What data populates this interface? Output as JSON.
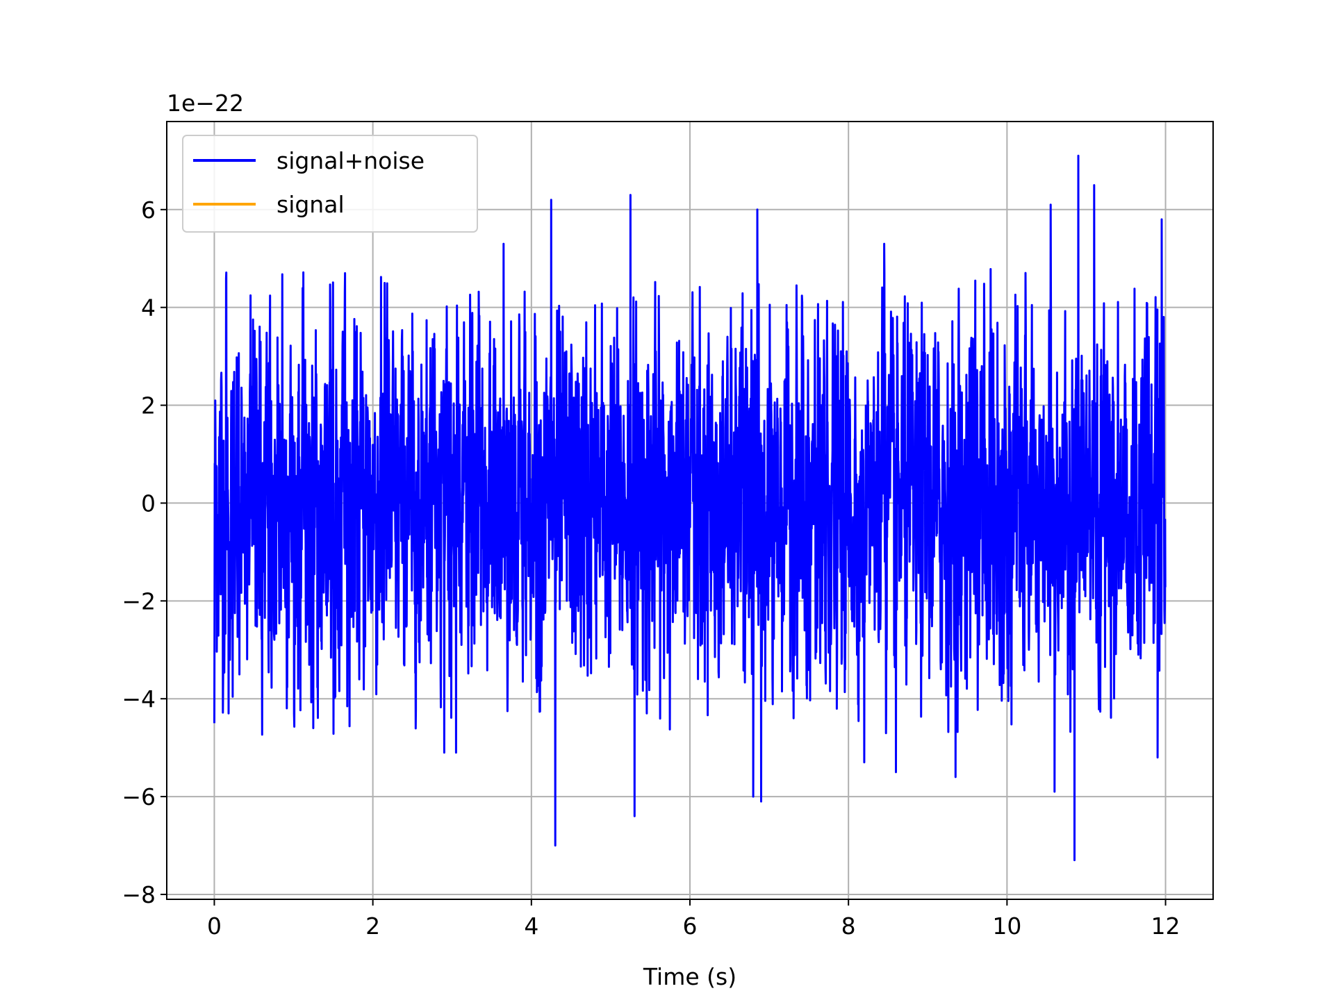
{
  "chart_data": {
    "type": "line",
    "title": "",
    "xlabel": "Time (s)",
    "ylabel": "",
    "y_offset_text": "1e−22",
    "xlim": [
      -0.6,
      12.6
    ],
    "ylim": [
      -8.1,
      7.8
    ],
    "x_ticks": [
      0,
      2,
      4,
      6,
      8,
      10,
      12
    ],
    "x_tick_labels": [
      "0",
      "2",
      "4",
      "6",
      "8",
      "10",
      "12"
    ],
    "y_ticks": [
      -8,
      -6,
      -4,
      -2,
      0,
      2,
      4,
      6
    ],
    "y_tick_labels": [
      "−8",
      "−6",
      "−4",
      "−2",
      "0",
      "2",
      "4",
      "6"
    ],
    "grid": true,
    "legend_position": "top-left",
    "series": [
      {
        "name": "signal+noise",
        "color": "#0000ff",
        "x_range": [
          0,
          12
        ],
        "y_range": [
          -7.3,
          7.1
        ],
        "approx_std": 1.6,
        "peaks": [
          {
            "x": 0.0,
            "y": -4.5
          },
          {
            "x": 0.15,
            "y": 4.6
          },
          {
            "x": 0.18,
            "y": -4.3
          },
          {
            "x": 1.25,
            "y": -4.6
          },
          {
            "x": 1.65,
            "y": 4.7
          },
          {
            "x": 2.15,
            "y": 4.5
          },
          {
            "x": 2.9,
            "y": -5.1
          },
          {
            "x": 3.05,
            "y": -5.1
          },
          {
            "x": 3.65,
            "y": 5.3
          },
          {
            "x": 4.25,
            "y": 6.2
          },
          {
            "x": 4.3,
            "y": -7.0
          },
          {
            "x": 5.25,
            "y": 6.3
          },
          {
            "x": 5.3,
            "y": -6.4
          },
          {
            "x": 6.8,
            "y": -6.0
          },
          {
            "x": 6.85,
            "y": 6.0
          },
          {
            "x": 6.9,
            "y": -6.1
          },
          {
            "x": 8.2,
            "y": -5.3
          },
          {
            "x": 8.45,
            "y": 5.3
          },
          {
            "x": 8.6,
            "y": -5.5
          },
          {
            "x": 9.35,
            "y": -5.6
          },
          {
            "x": 10.55,
            "y": 6.1
          },
          {
            "x": 10.6,
            "y": -5.9
          },
          {
            "x": 10.85,
            "y": -7.3
          },
          {
            "x": 10.9,
            "y": 7.1
          },
          {
            "x": 11.1,
            "y": 6.5
          },
          {
            "x": 11.9,
            "y": -5.2
          },
          {
            "x": 11.95,
            "y": 5.8
          }
        ]
      },
      {
        "name": "signal",
        "color": "#ffa500",
        "values": []
      }
    ]
  }
}
